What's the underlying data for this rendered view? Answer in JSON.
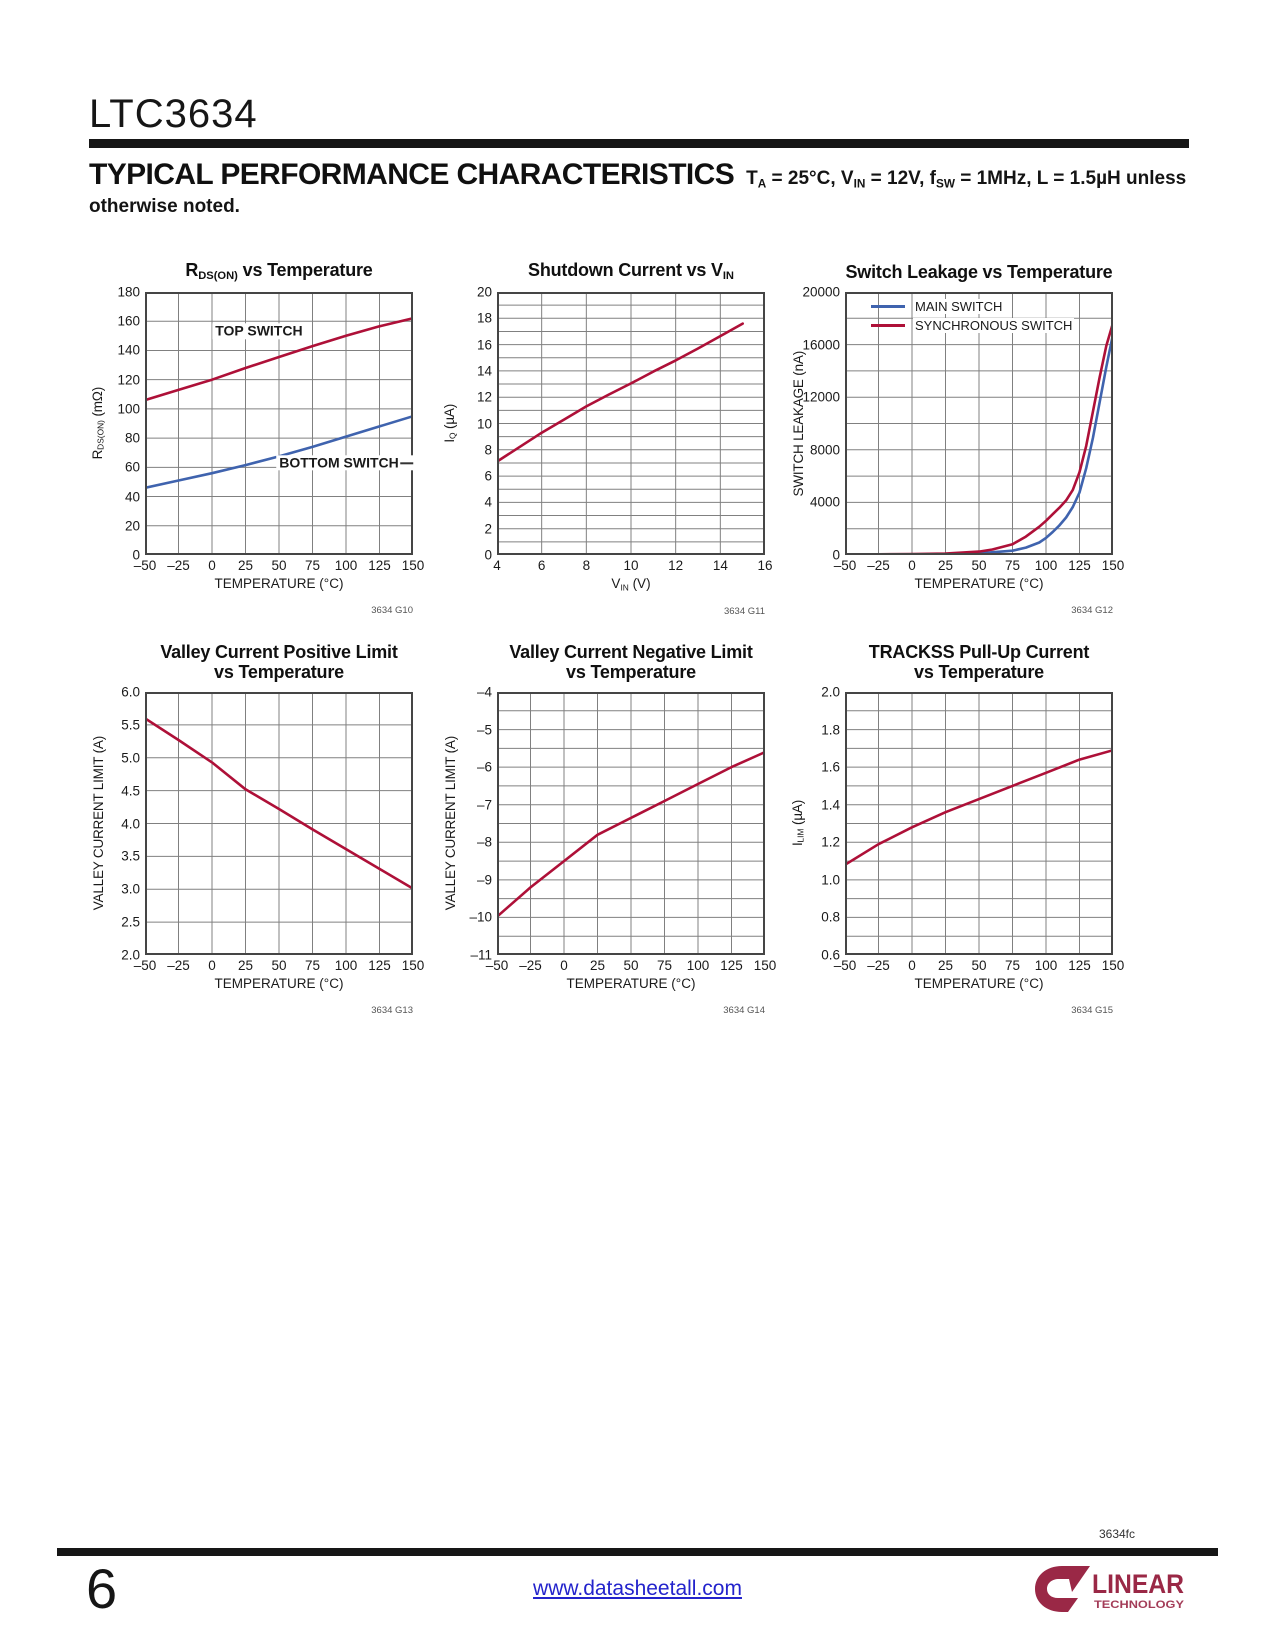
{
  "header": {
    "part_number": "LTC3634",
    "section_title": "TYPICAL PERFORMANCE CHARACTERISTICS",
    "conditions_line1": [
      {
        "t": "T"
      },
      {
        "t": "A",
        "sub": true
      },
      {
        "t": " = 25°C, V"
      },
      {
        "t": "IN",
        "sub": true
      },
      {
        "t": " = 12V, f"
      },
      {
        "t": "SW",
        "sub": true
      },
      {
        "t": " = 1MHz, L = 1.5µH unless"
      }
    ],
    "conditions_line2": "otherwise noted."
  },
  "footer": {
    "doc_code": "3634fc",
    "page_number": "6",
    "link": "www.datasheetall.com",
    "logo_line1": "LINEAR",
    "logo_line2": "TECHNOLOGY"
  },
  "colors": {
    "curve_red": "#AE1038",
    "curve_blue": "#3F63AE",
    "grid": "#808080",
    "plot_border": "#454545",
    "link_blue": "#2323CC",
    "logo_red": "#9A2846"
  },
  "chart_data": [
    {
      "type": "line",
      "graph_id": "3634 G10",
      "title_lines": [
        [
          {
            "t": "R"
          },
          {
            "t": "DS(ON)",
            "sub": true
          },
          {
            "t": " vs Temperature"
          }
        ]
      ],
      "ylabel": [
        {
          "t": "R"
        },
        {
          "t": "DS(ON)",
          "sub": true
        },
        {
          "t": " (mΩ)"
        }
      ],
      "xlabel": [
        {
          "t": "TEMPERATURE (°C)"
        }
      ],
      "xlim": [
        -50,
        150
      ],
      "ylim": [
        0,
        180
      ],
      "x_grid": 25,
      "y_grid": 20,
      "x_ticks": [
        {
          "v": -50,
          "t": "–50"
        },
        {
          "v": -25,
          "t": "–25"
        },
        {
          "v": 0,
          "t": "0"
        },
        {
          "v": 25,
          "t": "25"
        },
        {
          "v": 50,
          "t": "50"
        },
        {
          "v": 75,
          "t": "75"
        },
        {
          "v": 100,
          "t": "100"
        },
        {
          "v": 125,
          "t": "125"
        },
        {
          "v": 150,
          "t": "150"
        }
      ],
      "y_ticks": [
        {
          "v": 0,
          "t": "0"
        },
        {
          "v": 20,
          "t": "20"
        },
        {
          "v": 40,
          "t": "40"
        },
        {
          "v": 60,
          "t": "60"
        },
        {
          "v": 80,
          "t": "80"
        },
        {
          "v": 100,
          "t": "100"
        },
        {
          "v": 120,
          "t": "120"
        },
        {
          "v": 140,
          "t": "140"
        },
        {
          "v": 160,
          "t": "160"
        },
        {
          "v": 180,
          "t": "180"
        }
      ],
      "series": [
        {
          "name": "TOP SWITCH",
          "color": "#AE1038",
          "points": [
            [
              -50,
              106
            ],
            [
              -25,
              113
            ],
            [
              0,
              120
            ],
            [
              25,
              128
            ],
            [
              50,
              135.5
            ],
            [
              75,
              143
            ],
            [
              100,
              150
            ],
            [
              125,
              156.5
            ],
            [
              150,
              162
            ]
          ]
        },
        {
          "name": "BOTTOM SWITCH",
          "color": "#3F63AE",
          "points": [
            [
              -50,
              46
            ],
            [
              -25,
              51
            ],
            [
              0,
              56
            ],
            [
              25,
              61.5
            ],
            [
              50,
              67.5
            ],
            [
              75,
              74
            ],
            [
              100,
              81
            ],
            [
              125,
              88
            ],
            [
              150,
              95
            ]
          ]
        }
      ],
      "annotations": [
        {
          "text": "TOP SWITCH",
          "x": 35,
          "y": 153
        },
        {
          "text": "BOTTOM SWITCH",
          "x": 100,
          "y": 63,
          "dash_after": true
        }
      ]
    },
    {
      "type": "line",
      "graph_id": "3634 G11",
      "title_lines": [
        [
          {
            "t": "Shutdown Current vs V"
          },
          {
            "t": "IN",
            "sub": true
          }
        ]
      ],
      "ylabel": [
        {
          "t": "I"
        },
        {
          "t": "Q",
          "sub": true
        },
        {
          "t": " (µA)"
        }
      ],
      "xlabel": [
        {
          "t": "V"
        },
        {
          "t": "IN",
          "sub": true
        },
        {
          "t": " (V)"
        }
      ],
      "xlim": [
        4,
        16
      ],
      "ylim": [
        0,
        20
      ],
      "x_grid": 2,
      "y_grid": 1,
      "x_ticks": [
        {
          "v": 4,
          "t": "4"
        },
        {
          "v": 6,
          "t": "6"
        },
        {
          "v": 8,
          "t": "8"
        },
        {
          "v": 10,
          "t": "10"
        },
        {
          "v": 12,
          "t": "12"
        },
        {
          "v": 14,
          "t": "14"
        },
        {
          "v": 16,
          "t": "16"
        }
      ],
      "y_ticks": [
        {
          "v": 0,
          "t": "0"
        },
        {
          "v": 2,
          "t": "2"
        },
        {
          "v": 4,
          "t": "4"
        },
        {
          "v": 6,
          "t": "6"
        },
        {
          "v": 8,
          "t": "8"
        },
        {
          "v": 10,
          "t": "10"
        },
        {
          "v": 12,
          "t": "12"
        },
        {
          "v": 14,
          "t": "14"
        },
        {
          "v": 16,
          "t": "16"
        },
        {
          "v": 18,
          "t": "18"
        },
        {
          "v": 20,
          "t": "20"
        }
      ],
      "series": [
        {
          "name": "SHUTDOWN CURRENT",
          "color": "#AE1038",
          "points": [
            [
              4,
              7.1
            ],
            [
              5,
              8.2
            ],
            [
              6,
              9.3
            ],
            [
              7,
              10.3
            ],
            [
              8,
              11.3
            ],
            [
              9,
              12.2
            ],
            [
              10,
              13.05
            ],
            [
              11,
              13.95
            ],
            [
              12,
              14.8
            ],
            [
              13,
              15.7
            ],
            [
              14,
              16.65
            ],
            [
              15,
              17.6
            ]
          ]
        }
      ],
      "annotations": []
    },
    {
      "type": "line",
      "graph_id": "3634 G12",
      "title_lines": [
        [
          {
            "t": "Switch Leakage vs Temperature"
          }
        ]
      ],
      "ylabel": [
        {
          "t": "SWITCH LEAKAGE (nA)"
        }
      ],
      "xlabel": [
        {
          "t": "TEMPERATURE (°C)"
        }
      ],
      "xlim": [
        -50,
        150
      ],
      "ylim": [
        0,
        20000
      ],
      "x_grid": 25,
      "y_grid": 2000,
      "x_ticks": [
        {
          "v": -50,
          "t": "–50"
        },
        {
          "v": -25,
          "t": "–25"
        },
        {
          "v": 0,
          "t": "0"
        },
        {
          "v": 25,
          "t": "25"
        },
        {
          "v": 50,
          "t": "50"
        },
        {
          "v": 75,
          "t": "75"
        },
        {
          "v": 100,
          "t": "100"
        },
        {
          "v": 125,
          "t": "125"
        },
        {
          "v": 150,
          "t": "150"
        }
      ],
      "y_ticks": [
        {
          "v": 0,
          "t": "0"
        },
        {
          "v": 4000,
          "t": "4000"
        },
        {
          "v": 8000,
          "t": "8000"
        },
        {
          "v": 12000,
          "t": "12000"
        },
        {
          "v": 16000,
          "t": "16000"
        },
        {
          "v": 20000,
          "t": "20000"
        }
      ],
      "series": [
        {
          "name": "MAIN SWITCH",
          "color": "#3F63AE",
          "points": [
            [
              -50,
              30
            ],
            [
              -25,
              35
            ],
            [
              0,
              45
            ],
            [
              25,
              70
            ],
            [
              50,
              130
            ],
            [
              75,
              330
            ],
            [
              85,
              560
            ],
            [
              95,
              950
            ],
            [
              100,
              1300
            ],
            [
              105,
              1750
            ],
            [
              110,
              2250
            ],
            [
              115,
              2850
            ],
            [
              120,
              3650
            ],
            [
              125,
              4750
            ],
            [
              130,
              6600
            ],
            [
              135,
              8900
            ],
            [
              140,
              11600
            ],
            [
              145,
              14300
            ],
            [
              150,
              16800
            ]
          ]
        },
        {
          "name": "SYNCHRONOUS SWITCH",
          "color": "#AE1038",
          "points": [
            [
              -50,
              40
            ],
            [
              -25,
              50
            ],
            [
              0,
              65
            ],
            [
              25,
              110
            ],
            [
              50,
              260
            ],
            [
              60,
              420
            ],
            [
              75,
              820
            ],
            [
              85,
              1400
            ],
            [
              95,
              2150
            ],
            [
              100,
              2600
            ],
            [
              105,
              3100
            ],
            [
              110,
              3600
            ],
            [
              115,
              4150
            ],
            [
              120,
              4950
            ],
            [
              125,
              6300
            ],
            [
              130,
              8300
            ],
            [
              135,
              10900
            ],
            [
              140,
              13500
            ],
            [
              145,
              15900
            ],
            [
              150,
              17650
            ]
          ]
        }
      ],
      "legend": [
        {
          "label": "MAIN SWITCH",
          "color": "#3F63AE"
        },
        {
          "label": "SYNCHRONOUS SWITCH",
          "color": "#AE1038"
        }
      ],
      "annotations": []
    },
    {
      "type": "line",
      "graph_id": "3634 G13",
      "title_lines": [
        [
          {
            "t": "Valley Current Positive Limit"
          }
        ],
        [
          {
            "t": "vs Temperature"
          }
        ]
      ],
      "ylabel": [
        {
          "t": "VALLEY CURRENT LIMIT (A)"
        }
      ],
      "xlabel": [
        {
          "t": "TEMPERATURE (°C)"
        }
      ],
      "xlim": [
        -50,
        150
      ],
      "ylim": [
        2.0,
        6.0
      ],
      "x_grid": 25,
      "y_grid": 0.5,
      "x_ticks": [
        {
          "v": -50,
          "t": "–50"
        },
        {
          "v": -25,
          "t": "–25"
        },
        {
          "v": 0,
          "t": "0"
        },
        {
          "v": 25,
          "t": "25"
        },
        {
          "v": 50,
          "t": "50"
        },
        {
          "v": 75,
          "t": "75"
        },
        {
          "v": 100,
          "t": "100"
        },
        {
          "v": 125,
          "t": "125"
        },
        {
          "v": 150,
          "t": "150"
        }
      ],
      "y_ticks": [
        {
          "v": 2.0,
          "t": "2.0"
        },
        {
          "v": 2.5,
          "t": "2.5"
        },
        {
          "v": 3.0,
          "t": "3.0"
        },
        {
          "v": 3.5,
          "t": "3.5"
        },
        {
          "v": 4.0,
          "t": "4.0"
        },
        {
          "v": 4.5,
          "t": "4.5"
        },
        {
          "v": 5.0,
          "t": "5.0"
        },
        {
          "v": 5.5,
          "t": "5.5"
        },
        {
          "v": 6.0,
          "t": "6.0"
        }
      ],
      "series": [
        {
          "name": "VALLEY CURRENT POSITIVE LIMIT",
          "color": "#AE1038",
          "points": [
            [
              -50,
              5.6
            ],
            [
              -25,
              5.27
            ],
            [
              0,
              4.93
            ],
            [
              25,
              4.52
            ],
            [
              50,
              4.22
            ],
            [
              75,
              3.91
            ],
            [
              100,
              3.61
            ],
            [
              125,
              3.31
            ],
            [
              150,
              3.01
            ]
          ]
        }
      ],
      "annotations": []
    },
    {
      "type": "line",
      "graph_id": "3634 G14",
      "title_lines": [
        [
          {
            "t": "Valley Current Negative Limit"
          }
        ],
        [
          {
            "t": "vs Temperature"
          }
        ]
      ],
      "ylabel": [
        {
          "t": "VALLEY CURRENT LIMIT (A)"
        }
      ],
      "xlabel": [
        {
          "t": "TEMPERATURE (°C)"
        }
      ],
      "xlim": [
        -50,
        150
      ],
      "ylim": [
        -11,
        -4
      ],
      "x_grid": 25,
      "y_grid": 0.5,
      "x_ticks": [
        {
          "v": -50,
          "t": "–50"
        },
        {
          "v": -25,
          "t": "–25"
        },
        {
          "v": 0,
          "t": "0"
        },
        {
          "v": 25,
          "t": "25"
        },
        {
          "v": 50,
          "t": "50"
        },
        {
          "v": 75,
          "t": "75"
        },
        {
          "v": 100,
          "t": "100"
        },
        {
          "v": 125,
          "t": "125"
        },
        {
          "v": 150,
          "t": "150"
        }
      ],
      "y_ticks": [
        {
          "v": -11,
          "t": "–11"
        },
        {
          "v": -10,
          "t": "–10"
        },
        {
          "v": -9,
          "t": "–9"
        },
        {
          "v": -8,
          "t": "–8"
        },
        {
          "v": -7,
          "t": "–7"
        },
        {
          "v": -6,
          "t": "–6"
        },
        {
          "v": -5,
          "t": "–5"
        },
        {
          "v": -4,
          "t": "–4"
        }
      ],
      "series": [
        {
          "name": "VALLEY CURRENT NEGATIVE LIMIT",
          "color": "#AE1038",
          "points": [
            [
              -50,
              -9.98
            ],
            [
              -25,
              -9.2
            ],
            [
              0,
              -8.5
            ],
            [
              25,
              -7.8
            ],
            [
              50,
              -7.35
            ],
            [
              75,
              -6.9
            ],
            [
              100,
              -6.45
            ],
            [
              125,
              -6.0
            ],
            [
              150,
              -5.6
            ]
          ]
        }
      ],
      "annotations": []
    },
    {
      "type": "line",
      "graph_id": "3634 G15",
      "title_lines": [
        [
          {
            "t": "TRACKSS Pull-Up Current"
          }
        ],
        [
          {
            "t": "vs Temperature"
          }
        ]
      ],
      "ylabel": [
        {
          "t": "I"
        },
        {
          "t": "LIM",
          "sub": true
        },
        {
          "t": " (µA)"
        }
      ],
      "xlabel": [
        {
          "t": "TEMPERATURE (°C)"
        }
      ],
      "xlim": [
        -50,
        150
      ],
      "ylim": [
        0.6,
        2.0
      ],
      "x_grid": 25,
      "y_grid": 0.1,
      "x_ticks": [
        {
          "v": -50,
          "t": "–50"
        },
        {
          "v": -25,
          "t": "–25"
        },
        {
          "v": 0,
          "t": "0"
        },
        {
          "v": 25,
          "t": "25"
        },
        {
          "v": 50,
          "t": "50"
        },
        {
          "v": 75,
          "t": "75"
        },
        {
          "v": 100,
          "t": "100"
        },
        {
          "v": 125,
          "t": "125"
        },
        {
          "v": 150,
          "t": "150"
        }
      ],
      "y_ticks": [
        {
          "v": 0.6,
          "t": "0.6"
        },
        {
          "v": 0.8,
          "t": "0.8"
        },
        {
          "v": 1.0,
          "t": "1.0"
        },
        {
          "v": 1.2,
          "t": "1.2"
        },
        {
          "v": 1.4,
          "t": "1.4"
        },
        {
          "v": 1.6,
          "t": "1.6"
        },
        {
          "v": 1.8,
          "t": "1.8"
        },
        {
          "v": 2.0,
          "t": "2.0"
        }
      ],
      "series": [
        {
          "name": "TRACKSS PULL-UP CURRENT",
          "color": "#AE1038",
          "points": [
            [
              -50,
              1.08
            ],
            [
              -25,
              1.19
            ],
            [
              0,
              1.28
            ],
            [
              25,
              1.36
            ],
            [
              50,
              1.43
            ],
            [
              75,
              1.5
            ],
            [
              100,
              1.57
            ],
            [
              125,
              1.64
            ],
            [
              150,
              1.69
            ]
          ]
        }
      ],
      "annotations": []
    }
  ]
}
